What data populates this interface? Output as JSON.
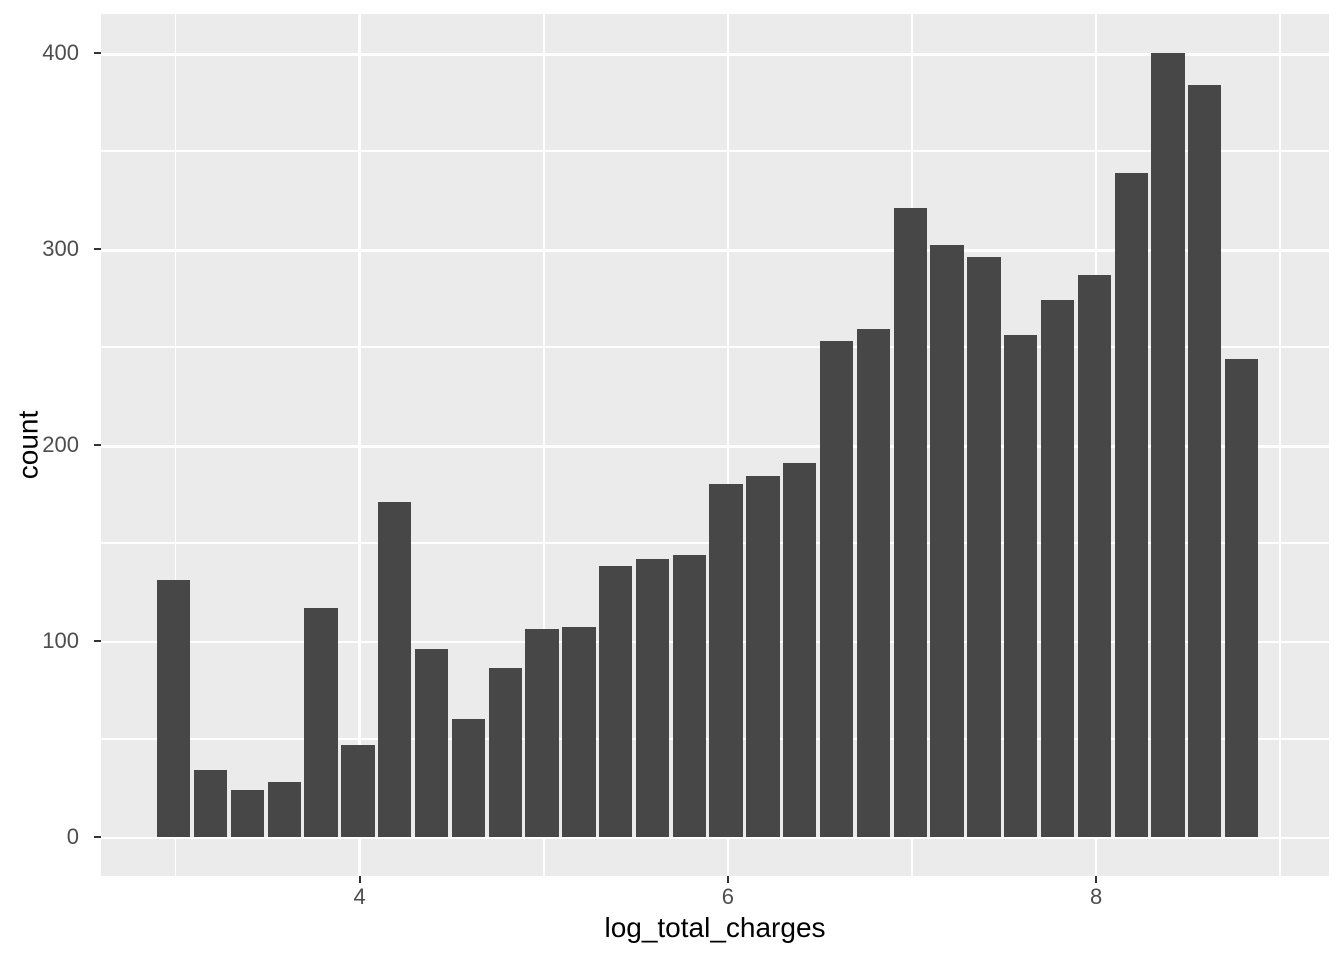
{
  "chart_data": {
    "type": "bar",
    "subtype": "histogram",
    "title": "",
    "xlabel": "log_total_charges",
    "ylabel": "count",
    "bin_width": 0.2,
    "bin_centers": [
      3.0,
      3.2,
      3.4,
      3.6,
      3.8,
      4.0,
      4.2,
      4.4,
      4.6,
      4.8,
      5.0,
      5.2,
      5.4,
      5.6,
      5.8,
      6.0,
      6.2,
      6.4,
      6.6,
      6.8,
      7.0,
      7.2,
      7.4,
      7.6,
      7.8,
      8.0,
      8.2,
      8.4,
      8.6,
      8.8
    ],
    "counts": [
      131,
      34,
      24,
      28,
      117,
      47,
      171,
      96,
      60,
      86,
      106,
      107,
      138,
      142,
      144,
      180,
      184,
      191,
      253,
      259,
      321,
      302,
      296,
      256,
      274,
      287,
      339,
      400,
      384,
      244
    ],
    "x_ticks": [
      4,
      6,
      8
    ],
    "y_ticks": [
      0,
      100,
      200,
      300,
      400
    ],
    "x_minor_gridlines": [
      3,
      5,
      7,
      9
    ],
    "y_minor_gridlines": [
      50,
      150,
      250,
      350
    ],
    "xlim": [
      2.595,
      9.265
    ],
    "ylim": [
      -20,
      420
    ],
    "grid": "on",
    "legend": "none",
    "colors": {
      "bar_fill": "#474747",
      "panel_background": "#EBEBEB",
      "gridline": "#FFFFFF",
      "tick_label": "#4D4D4D",
      "axis_title": "#000000",
      "tick_mark": "#333333",
      "figure_background": "#FFFFFF"
    }
  }
}
